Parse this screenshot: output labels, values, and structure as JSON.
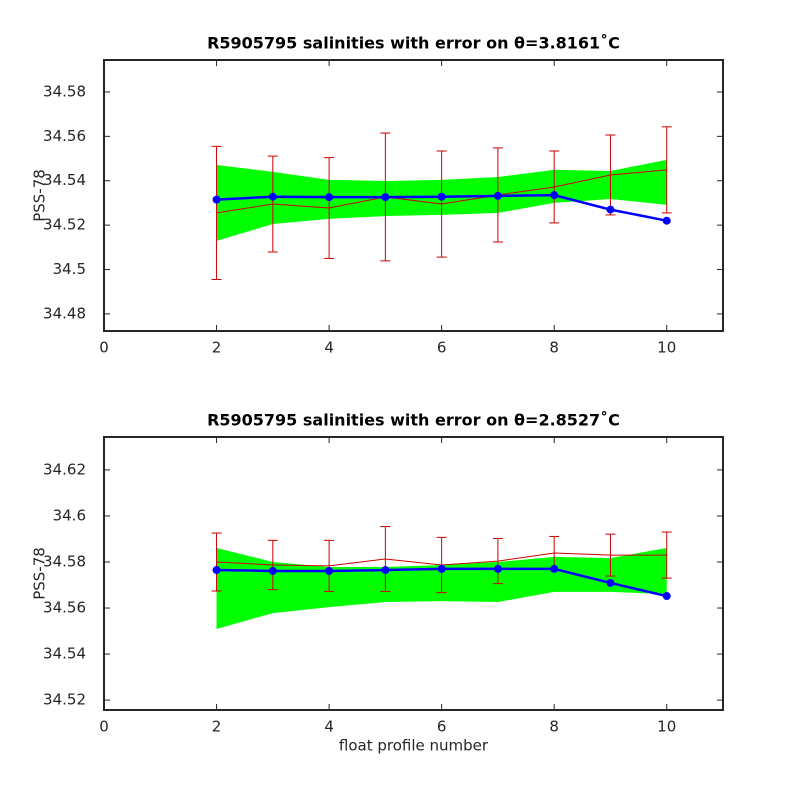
{
  "chart_data": [
    {
      "type": "line",
      "title": "R5905795 salinities with error on θ=3.8161˚C",
      "y_label": "PSS-78",
      "x": [
        2,
        3,
        4,
        5,
        6,
        7,
        8,
        9,
        10
      ],
      "xlim": [
        0,
        11
      ],
      "xticks": [
        0,
        2,
        4,
        6,
        8,
        10
      ],
      "ylim": [
        34.4723,
        34.5944
      ],
      "yticks": [
        34.48,
        34.5,
        34.52,
        34.54,
        34.56,
        34.58
      ],
      "series": [
        {
          "color": "#00ff00",
          "upper": [
            34.5471,
            34.544,
            34.5404,
            34.5399,
            34.5404,
            34.5417,
            34.5449,
            34.5444,
            34.5494
          ],
          "lower": [
            34.5129,
            34.5205,
            34.5228,
            34.5241,
            34.5246,
            34.5255,
            34.53,
            34.5318,
            34.5291
          ]
        },
        {
          "color": "#cc0000",
          "values": [
            34.5255,
            34.5295,
            34.5277,
            34.5327,
            34.5295,
            34.5336,
            34.5372,
            34.5426,
            34.5449
          ],
          "errors": [
            0.03,
            0.0216,
            0.0227,
            0.0288,
            0.0239,
            0.0212,
            0.0162,
            0.018,
            0.0194
          ]
        },
        {
          "color": "#0000ff",
          "values": [
            34.5315,
            34.5328,
            34.5326,
            34.5326,
            34.5328,
            34.5332,
            34.5335,
            34.527,
            34.522
          ]
        }
      ]
    },
    {
      "type": "line",
      "title": "R5905795 salinities with error on θ=2.8527˚C",
      "y_label": "PSS-78",
      "x_label": "float profile number",
      "x": [
        2,
        3,
        4,
        5,
        6,
        7,
        8,
        9,
        10
      ],
      "xlim": [
        0,
        11
      ],
      "xticks": [
        0,
        2,
        4,
        6,
        8,
        10
      ],
      "ylim": [
        34.5157,
        34.6343
      ],
      "yticks": [
        34.52,
        34.54,
        34.56,
        34.58,
        34.6,
        34.62
      ],
      "series": [
        {
          "color": "#00ff00",
          "upper": [
            34.5861,
            34.58,
            34.5778,
            34.5778,
            34.5787,
            34.58,
            34.5822,
            34.5817,
            34.5861
          ],
          "lower": [
            34.5509,
            34.5578,
            34.5604,
            34.5626,
            34.563,
            34.5626,
            34.567,
            34.567,
            34.5661
          ]
        },
        {
          "color": "#cc0000",
          "values": [
            34.58,
            34.5787,
            34.5783,
            34.5813,
            34.5787,
            34.5804,
            34.5839,
            34.583,
            34.583
          ],
          "errors": [
            0.0126,
            0.0107,
            0.0111,
            0.0141,
            0.012,
            0.0098,
            0.0072,
            0.0091,
            0.01
          ]
        },
        {
          "color": "#0000ff",
          "values": [
            34.5765,
            34.5761,
            34.5761,
            34.5765,
            34.577,
            34.577,
            34.577,
            34.5709,
            34.5652
          ]
        }
      ]
    }
  ]
}
